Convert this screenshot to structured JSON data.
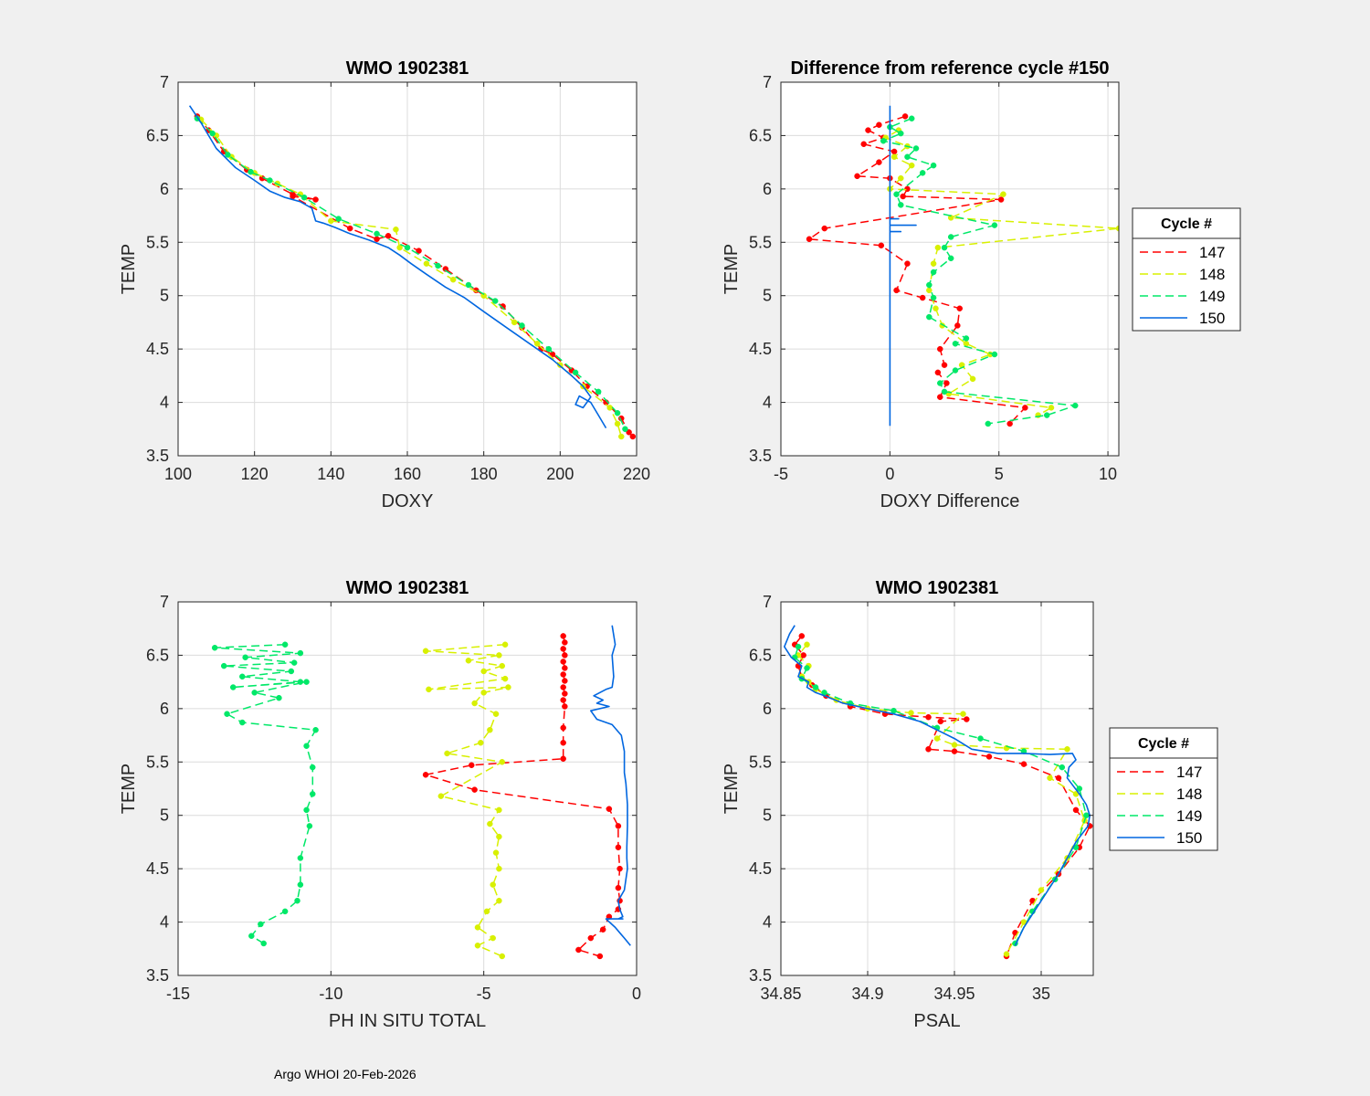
{
  "footer": "Argo WHOI 20-Feb-2026",
  "colors": {
    "c147": "#ff0000",
    "c148": "#d8f000",
    "c149": "#00e868",
    "c150": "#0066e0",
    "grid": "#dcdcdc",
    "bg": "#f0f0f0"
  },
  "chart_data": [
    {
      "type": "line",
      "title": "WMO 1902381",
      "xlabel": "DOXY",
      "ylabel": "TEMP",
      "xlim": [
        100,
        220
      ],
      "ylim": [
        3.5,
        7
      ],
      "xticks": [
        100,
        120,
        140,
        160,
        180,
        200,
        220
      ],
      "yticks": [
        3.5,
        4,
        4.5,
        5,
        5.5,
        6,
        6.5,
        7
      ],
      "series": [
        {
          "name": "147",
          "style": "dash-marker",
          "x": [
            105,
            108,
            112,
            118,
            122,
            130,
            136,
            130,
            145,
            152,
            155,
            163,
            170,
            178,
            185,
            190,
            195,
            198,
            203,
            207,
            212,
            216,
            218,
            219
          ],
          "y": [
            6.68,
            6.55,
            6.35,
            6.18,
            6.1,
            5.95,
            5.9,
            5.93,
            5.63,
            5.53,
            5.56,
            5.42,
            5.25,
            5.05,
            4.9,
            4.7,
            4.5,
            4.45,
            4.3,
            4.15,
            4.0,
            3.85,
            3.72,
            3.68
          ]
        },
        {
          "name": "148",
          "style": "dash-marker",
          "x": [
            106,
            110,
            114,
            120,
            126,
            132,
            140,
            157,
            158,
            165,
            172,
            180,
            188,
            194,
            200,
            206,
            213,
            215,
            216
          ],
          "y": [
            6.65,
            6.5,
            6.3,
            6.15,
            6.05,
            5.95,
            5.7,
            5.62,
            5.45,
            5.3,
            5.15,
            5.0,
            4.75,
            4.55,
            4.35,
            4.15,
            3.95,
            3.8,
            3.68
          ]
        },
        {
          "name": "149",
          "style": "dash-marker",
          "x": [
            105,
            109,
            113,
            119,
            124,
            133,
            142,
            152,
            160,
            168,
            176,
            183,
            190,
            197,
            204,
            210,
            215,
            217
          ],
          "y": [
            6.66,
            6.52,
            6.32,
            6.16,
            6.08,
            5.92,
            5.72,
            5.58,
            5.45,
            5.28,
            5.1,
            4.95,
            4.72,
            4.5,
            4.28,
            4.1,
            3.9,
            3.75
          ]
        },
        {
          "name": "150",
          "style": "solid",
          "x": [
            103,
            106,
            110,
            115,
            120,
            124,
            128,
            132,
            135,
            136,
            138,
            141,
            145,
            150,
            155,
            158,
            161,
            165,
            170,
            175,
            180,
            186,
            192,
            198,
            203,
            206,
            208,
            206,
            204,
            205,
            208,
            210,
            212
          ],
          "y": [
            6.78,
            6.62,
            6.38,
            6.2,
            6.08,
            5.98,
            5.92,
            5.88,
            5.82,
            5.7,
            5.68,
            5.64,
            5.58,
            5.52,
            5.45,
            5.38,
            5.3,
            5.2,
            5.08,
            4.98,
            4.85,
            4.7,
            4.55,
            4.4,
            4.25,
            4.15,
            4.05,
            3.95,
            3.98,
            4.06,
            4.0,
            3.88,
            3.76
          ]
        }
      ]
    },
    {
      "type": "line",
      "title": "Difference from reference cycle #150",
      "xlabel": "DOXY Difference",
      "ylabel": "TEMP",
      "xlim": [
        -5,
        10.5
      ],
      "ylim": [
        3.5,
        7
      ],
      "xticks": [
        -5,
        0,
        5,
        10
      ],
      "yticks": [
        3.5,
        4,
        4.5,
        5,
        5.5,
        6,
        6.5,
        7
      ],
      "legend": {
        "title": "Cycle #",
        "entries": [
          "147",
          "148",
          "149",
          "150"
        ]
      },
      "series": [
        {
          "name": "147",
          "style": "dash-marker",
          "x": [
            0.7,
            -0.5,
            -1.0,
            -0.3,
            -1.2,
            0.2,
            -0.5,
            -1.5,
            0.0,
            0.8,
            0.6,
            5.1,
            -3.0,
            -3.7,
            -0.4,
            0.8,
            0.3,
            1.5,
            3.2,
            3.1,
            2.3,
            2.5,
            2.2,
            2.6,
            2.3,
            6.2,
            5.5
          ],
          "y": [
            6.68,
            6.6,
            6.55,
            6.48,
            6.42,
            6.35,
            6.25,
            6.12,
            6.1,
            6.0,
            5.93,
            5.9,
            5.63,
            5.53,
            5.47,
            5.3,
            5.05,
            4.98,
            4.88,
            4.72,
            4.5,
            4.35,
            4.28,
            4.18,
            4.05,
            3.95,
            3.8
          ]
        },
        {
          "name": "148",
          "style": "dash-marker",
          "x": [
            0.4,
            -0.2,
            0.8,
            0.2,
            1.0,
            0.5,
            0.0,
            5.2,
            2.8,
            10.5,
            2.2,
            2.0,
            1.8,
            2.1,
            2.4,
            3.5,
            4.6,
            3.3,
            3.8,
            2.7,
            7.4,
            6.8
          ],
          "y": [
            6.55,
            6.48,
            6.4,
            6.3,
            6.22,
            6.1,
            6.0,
            5.95,
            5.73,
            5.63,
            5.45,
            5.3,
            5.05,
            4.88,
            4.72,
            4.55,
            4.45,
            4.35,
            4.22,
            4.08,
            3.95,
            3.88
          ]
        },
        {
          "name": "149",
          "style": "dash-marker",
          "x": [
            1.0,
            0.0,
            0.5,
            -0.3,
            1.2,
            0.8,
            2.0,
            1.5,
            0.3,
            0.5,
            4.8,
            2.8,
            2.5,
            2.8,
            2.0,
            1.8,
            2.0,
            1.8,
            3.5,
            3.0,
            4.8,
            3.0,
            2.3,
            2.5,
            8.5,
            7.2,
            4.5
          ],
          "y": [
            6.66,
            6.58,
            6.52,
            6.45,
            6.38,
            6.3,
            6.22,
            6.15,
            5.95,
            5.85,
            5.66,
            5.55,
            5.45,
            5.35,
            5.22,
            5.1,
            4.98,
            4.8,
            4.6,
            4.55,
            4.45,
            4.3,
            4.18,
            4.1,
            3.97,
            3.88,
            3.8
          ]
        },
        {
          "name": "150",
          "style": "solid",
          "x": [
            0,
            0,
            0,
            0,
            0.4,
            0,
            0,
            1.2,
            0,
            0,
            0.5,
            0,
            0
          ],
          "y": [
            6.78,
            5.78,
            5.78,
            5.72,
            5.72,
            5.72,
            5.66,
            5.66,
            5.66,
            5.6,
            5.6,
            5.6,
            3.78
          ]
        }
      ]
    },
    {
      "type": "line",
      "title": "WMO 1902381",
      "xlabel": "PH IN SITU TOTAL",
      "ylabel": "TEMP",
      "xlim": [
        -15,
        0
      ],
      "ylim": [
        3.5,
        7
      ],
      "xticks": [
        -15,
        -10,
        -5,
        0
      ],
      "yticks": [
        3.5,
        4,
        4.5,
        5,
        5.5,
        6,
        6.5,
        7
      ],
      "series": [
        {
          "name": "147",
          "style": "dash-marker",
          "x": [
            -2.4,
            -2.35,
            -2.4,
            -2.35,
            -2.4,
            -2.35,
            -2.4,
            -2.35,
            -2.4,
            -2.35,
            -2.4,
            -2.35,
            -2.4,
            -2.4,
            -2.4,
            -5.4,
            -6.9,
            -5.3,
            -0.9,
            -0.6,
            -0.6,
            -0.55,
            -0.6,
            -0.55,
            -0.6,
            -0.9,
            -1.1,
            -1.5,
            -1.9,
            -1.2
          ],
          "y": [
            6.68,
            6.62,
            6.56,
            6.5,
            6.44,
            6.38,
            6.32,
            6.26,
            6.2,
            6.14,
            6.08,
            6.02,
            5.82,
            5.68,
            5.53,
            5.47,
            5.38,
            5.24,
            5.06,
            4.9,
            4.7,
            4.5,
            4.32,
            4.2,
            4.12,
            4.05,
            3.93,
            3.85,
            3.74,
            3.68
          ]
        },
        {
          "name": "148",
          "style": "dash-marker",
          "x": [
            -4.3,
            -6.9,
            -4.5,
            -5.5,
            -4.4,
            -5.0,
            -4.3,
            -6.8,
            -4.2,
            -5.0,
            -5.3,
            -4.6,
            -4.8,
            -5.1,
            -6.2,
            -4.4,
            -6.4,
            -4.5,
            -4.8,
            -4.5,
            -4.6,
            -4.5,
            -4.7,
            -4.5,
            -4.9,
            -5.2,
            -4.7,
            -5.2,
            -4.4
          ],
          "y": [
            6.6,
            6.54,
            6.5,
            6.45,
            6.4,
            6.35,
            6.28,
            6.18,
            6.2,
            6.15,
            6.05,
            5.95,
            5.8,
            5.68,
            5.58,
            5.5,
            5.18,
            5.05,
            4.92,
            4.8,
            4.65,
            4.5,
            4.35,
            4.2,
            4.1,
            3.95,
            3.85,
            3.78,
            3.68
          ]
        },
        {
          "name": "149",
          "style": "dash-marker",
          "x": [
            -11.5,
            -13.8,
            -11.0,
            -12.8,
            -11.2,
            -13.5,
            -11.3,
            -12.9,
            -11.0,
            -13.2,
            -10.8,
            -12.5,
            -11.7,
            -13.4,
            -12.9,
            -10.5,
            -10.8,
            -10.6,
            -10.6,
            -10.8,
            -10.7,
            -11.0,
            -11.0,
            -11.1,
            -11.5,
            -12.3,
            -12.6,
            -12.2
          ],
          "y": [
            6.6,
            6.57,
            6.52,
            6.48,
            6.43,
            6.4,
            6.35,
            6.3,
            6.25,
            6.2,
            6.25,
            6.15,
            6.1,
            5.95,
            5.87,
            5.8,
            5.65,
            5.45,
            5.2,
            5.05,
            4.9,
            4.6,
            4.35,
            4.2,
            4.1,
            3.98,
            3.87,
            3.8
          ]
        },
        {
          "name": "150",
          "style": "solid",
          "x": [
            -0.8,
            -0.7,
            -0.8,
            -0.75,
            -0.8,
            -1.0,
            -1.4,
            -1.1,
            -1.3,
            -0.9,
            -1.5,
            -1.3,
            -0.8,
            -0.5,
            -0.4,
            -0.4,
            -0.35,
            -0.3,
            -0.3,
            -0.32,
            -0.32,
            -0.3,
            -0.35,
            -0.4,
            -0.6,
            -0.55,
            -0.45,
            -0.6,
            -0.45,
            -1.0,
            -0.7,
            -0.55,
            -0.4,
            -0.2
          ],
          "y": [
            6.78,
            6.6,
            6.5,
            6.3,
            6.2,
            6.18,
            6.12,
            6.08,
            6.05,
            6.02,
            5.98,
            5.9,
            5.85,
            5.75,
            5.6,
            5.4,
            5.3,
            5.1,
            4.9,
            4.7,
            4.6,
            4.5,
            4.4,
            4.3,
            4.2,
            4.12,
            4.05,
            4.03,
            4.03,
            4.03,
            3.95,
            3.9,
            3.85,
            3.78
          ]
        }
      ]
    },
    {
      "type": "line",
      "title": "WMO 1902381",
      "xlabel": "PSAL",
      "ylabel": "TEMP",
      "xlim": [
        34.85,
        35.03
      ],
      "ylim": [
        3.5,
        7
      ],
      "xticks": [
        34.85,
        34.9,
        34.95,
        35
      ],
      "xticklabels": [
        "34.85",
        "34.9",
        "34.95",
        "35"
      ],
      "yticks": [
        3.5,
        4,
        4.5,
        5,
        5.5,
        6,
        6.5,
        7
      ],
      "legend": {
        "title": "Cycle #",
        "entries": [
          "147",
          "148",
          "149",
          "150"
        ]
      },
      "series": [
        {
          "name": "147",
          "style": "dash-marker",
          "x": [
            34.862,
            34.858,
            34.863,
            34.86,
            34.862,
            34.868,
            34.876,
            34.89,
            34.91,
            34.935,
            34.957,
            34.942,
            34.935,
            34.95,
            34.97,
            34.99,
            35.01,
            35.02,
            35.028,
            35.022,
            35.01,
            34.995,
            34.985,
            34.98
          ],
          "y": [
            6.68,
            6.6,
            6.5,
            6.4,
            6.3,
            6.22,
            6.12,
            6.02,
            5.95,
            5.92,
            5.9,
            5.88,
            5.62,
            5.6,
            5.55,
            5.48,
            5.35,
            5.05,
            4.9,
            4.7,
            4.45,
            4.2,
            3.9,
            3.68
          ]
        },
        {
          "name": "148",
          "style": "dash-marker",
          "x": [
            34.865,
            34.86,
            34.866,
            34.862,
            34.866,
            34.87,
            34.882,
            34.9,
            34.925,
            34.955,
            34.94,
            34.95,
            34.98,
            35.015,
            35.005,
            35.02,
            35.025,
            35.015,
            35.0,
            34.99,
            34.98
          ],
          "y": [
            6.6,
            6.5,
            6.4,
            6.3,
            6.25,
            6.18,
            6.08,
            6.0,
            5.96,
            5.95,
            5.72,
            5.66,
            5.63,
            5.62,
            5.35,
            5.2,
            4.95,
            4.6,
            4.3,
            4.0,
            3.7
          ]
        },
        {
          "name": "149",
          "style": "dash-marker",
          "x": [
            34.86,
            34.858,
            34.865,
            34.862,
            34.87,
            34.875,
            34.89,
            34.915,
            34.94,
            34.965,
            34.99,
            35.012,
            35.022,
            35.026,
            35.02,
            35.008,
            34.995,
            34.985
          ],
          "y": [
            6.58,
            6.48,
            6.38,
            6.28,
            6.2,
            6.15,
            6.05,
            5.98,
            5.82,
            5.72,
            5.6,
            5.45,
            5.25,
            5.0,
            4.7,
            4.4,
            4.1,
            3.8
          ]
        },
        {
          "name": "150",
          "style": "solid",
          "x": [
            34.858,
            34.855,
            34.852,
            34.856,
            34.862,
            34.86,
            34.866,
            34.865,
            34.87,
            34.875,
            34.886,
            34.9,
            34.915,
            34.93,
            34.94,
            34.95,
            34.96,
            34.975,
            34.99,
            35.005,
            35.018,
            35.02,
            35.016,
            35.015,
            35.022,
            35.026,
            35.028,
            35.027,
            35.02,
            35.015,
            35.01,
            35.0,
            34.99,
            34.985
          ],
          "y": [
            6.78,
            6.7,
            6.58,
            6.48,
            6.4,
            6.3,
            6.25,
            6.2,
            6.15,
            6.12,
            6.05,
            6.0,
            5.95,
            5.88,
            5.8,
            5.72,
            5.62,
            5.58,
            5.58,
            5.57,
            5.58,
            5.52,
            5.45,
            5.35,
            5.2,
            5.1,
            5.0,
            4.9,
            4.75,
            4.6,
            4.45,
            4.2,
            3.95,
            3.78
          ]
        }
      ]
    }
  ]
}
